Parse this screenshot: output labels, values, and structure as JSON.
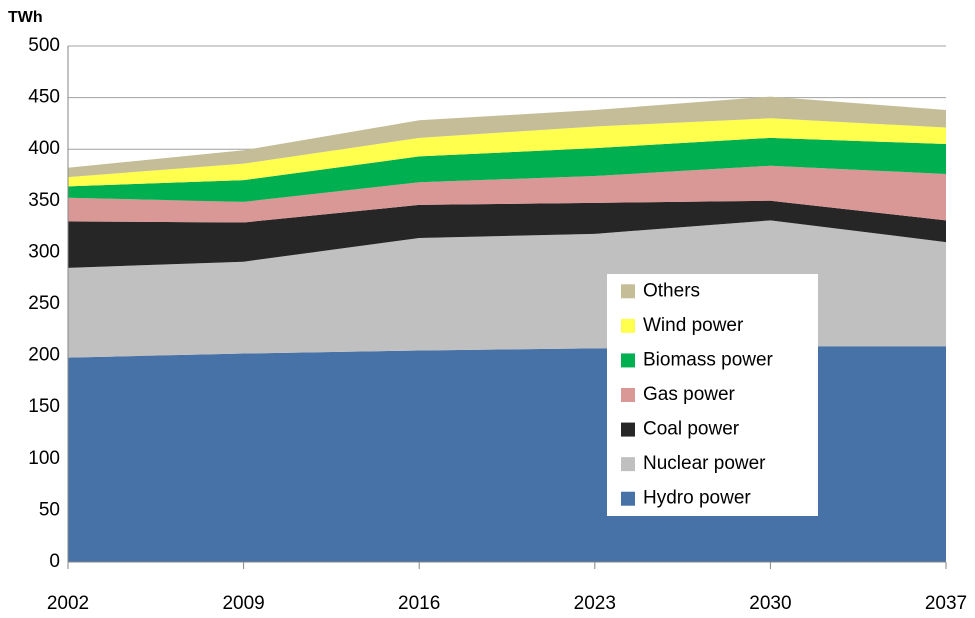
{
  "chart_data": {
    "type": "stacked_area",
    "y_label": "TWh",
    "x": [
      2002,
      2009,
      2016,
      2023,
      2030,
      2037
    ],
    "xlim": [
      2002,
      2037
    ],
    "xticks": [
      2002,
      2009,
      2016,
      2023,
      2030,
      2037
    ],
    "ylim": [
      0,
      500
    ],
    "yticks": [
      0,
      50,
      100,
      150,
      200,
      250,
      300,
      350,
      400,
      450,
      500
    ],
    "grid": true,
    "legend": "center-right",
    "series": [
      {
        "name": "Hydro power",
        "color": "#4672a8",
        "values": [
          198,
          202,
          205,
          207,
          209,
          209
        ]
      },
      {
        "name": "Nuclear power",
        "color": "#c0c0c0",
        "values": [
          87,
          89,
          109,
          111,
          122,
          101
        ]
      },
      {
        "name": "Coal power",
        "color": "#262626",
        "values": [
          45,
          38,
          32,
          30,
          19,
          21
        ]
      },
      {
        "name": "Gas power",
        "color": "#d99795",
        "values": [
          23,
          20,
          22,
          26,
          34,
          45
        ]
      },
      {
        "name": "Biomass power",
        "color": "#00b050",
        "values": [
          11,
          21,
          25,
          27,
          27,
          29
        ]
      },
      {
        "name": "Wind power",
        "color": "#ffff4d",
        "values": [
          9,
          16,
          18,
          21,
          19,
          16
        ]
      },
      {
        "name": "Others",
        "color": "#c4bd97",
        "values": [
          9,
          13,
          17,
          16,
          21,
          17
        ]
      }
    ]
  }
}
